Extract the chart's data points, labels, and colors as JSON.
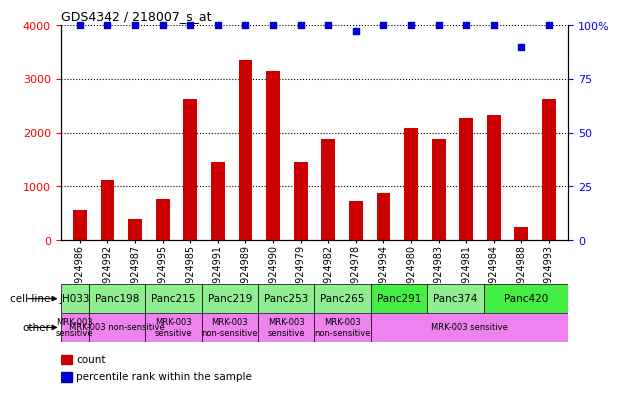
{
  "title": "GDS4342 / 218007_s_at",
  "samples": [
    "GSM924986",
    "GSM924992",
    "GSM924987",
    "GSM924995",
    "GSM924985",
    "GSM924991",
    "GSM924989",
    "GSM924990",
    "GSM924979",
    "GSM924982",
    "GSM924978",
    "GSM924994",
    "GSM924980",
    "GSM924983",
    "GSM924981",
    "GSM924984",
    "GSM924988",
    "GSM924993"
  ],
  "counts": [
    560,
    1120,
    400,
    760,
    2620,
    1460,
    3350,
    3150,
    1450,
    1880,
    720,
    880,
    2090,
    1880,
    2270,
    2320,
    240,
    2620
  ],
  "percentiles": [
    100,
    100,
    100,
    100,
    100,
    100,
    100,
    100,
    100,
    100,
    97,
    100,
    100,
    100,
    100,
    100,
    90,
    100
  ],
  "cell_lines": [
    {
      "name": "JH033",
      "start": 0,
      "end": 1,
      "color": "#90ee90"
    },
    {
      "name": "Panc198",
      "start": 1,
      "end": 3,
      "color": "#90ee90"
    },
    {
      "name": "Panc215",
      "start": 3,
      "end": 5,
      "color": "#90ee90"
    },
    {
      "name": "Panc219",
      "start": 5,
      "end": 7,
      "color": "#90ee90"
    },
    {
      "name": "Panc253",
      "start": 7,
      "end": 9,
      "color": "#90ee90"
    },
    {
      "name": "Panc265",
      "start": 9,
      "end": 11,
      "color": "#90ee90"
    },
    {
      "name": "Panc291",
      "start": 11,
      "end": 13,
      "color": "#44ee44"
    },
    {
      "name": "Panc374",
      "start": 13,
      "end": 15,
      "color": "#90ee90"
    },
    {
      "name": "Panc420",
      "start": 15,
      "end": 18,
      "color": "#44ee44"
    }
  ],
  "other_groups": [
    {
      "label": "MRK-003\nsensitive",
      "start": 0,
      "end": 1,
      "color": "#ee82ee"
    },
    {
      "label": "MRK-003 non-sensitive",
      "start": 1,
      "end": 3,
      "color": "#ee82ee"
    },
    {
      "label": "MRK-003\nsensitive",
      "start": 3,
      "end": 5,
      "color": "#ee82ee"
    },
    {
      "label": "MRK-003\nnon-sensitive",
      "start": 5,
      "end": 7,
      "color": "#ee82ee"
    },
    {
      "label": "MRK-003\nsensitive",
      "start": 7,
      "end": 9,
      "color": "#ee82ee"
    },
    {
      "label": "MRK-003\nnon-sensitive",
      "start": 9,
      "end": 11,
      "color": "#ee82ee"
    },
    {
      "label": "MRK-003 sensitive",
      "start": 11,
      "end": 18,
      "color": "#ee82ee"
    }
  ],
  "bar_color": "#cc0000",
  "dot_color": "#0000cc",
  "ylim_left": [
    0,
    4000
  ],
  "ylim_right": [
    0,
    100
  ],
  "yticks_left": [
    0,
    1000,
    2000,
    3000,
    4000
  ],
  "yticks_right": [
    0,
    25,
    50,
    75,
    100
  ],
  "yticklabels_right": [
    "0",
    "25",
    "50",
    "75",
    "100%"
  ],
  "legend_items": [
    {
      "color": "#cc0000",
      "label": "count"
    },
    {
      "color": "#0000cc",
      "label": "percentile rank within the sample"
    }
  ],
  "background_color": "#ffffff",
  "dot_size": 25,
  "bar_width": 0.5,
  "cell_line_row_label": "cell line",
  "other_row_label": "other"
}
